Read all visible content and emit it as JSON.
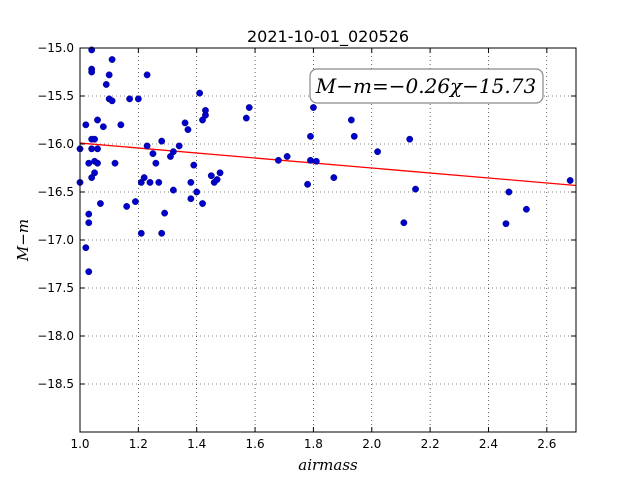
{
  "chart_data": {
    "type": "scatter",
    "title": "2021-10-01_020526",
    "xlabel": "airmass",
    "ylabel": "M−m",
    "xlim": [
      1.0,
      2.7
    ],
    "ylim": [
      -15.0,
      -19.0
    ],
    "y_inverted": true,
    "grid": true,
    "x_ticks": [
      "1.0",
      "1.2",
      "1.4",
      "1.6",
      "1.8",
      "2.0",
      "2.2",
      "2.4",
      "2.6"
    ],
    "y_ticks": [
      "−15.0",
      "−15.5",
      "−16.0",
      "−16.5",
      "−17.0",
      "−17.5",
      "−18.0",
      "−18.5"
    ],
    "annotation": "M−m=−0.26χ−15.73",
    "fit": {
      "slope": -0.26,
      "intercept": -15.73,
      "color": "#ff0000"
    },
    "point_color": "#0000cc",
    "points": [
      [
        1.0,
        -16.05
      ],
      [
        1.0,
        -16.4
      ],
      [
        1.02,
        -15.8
      ],
      [
        1.02,
        -17.08
      ],
      [
        1.03,
        -17.33
      ],
      [
        1.03,
        -16.73
      ],
      [
        1.03,
        -16.82
      ],
      [
        1.03,
        -16.2
      ],
      [
        1.04,
        -16.35
      ],
      [
        1.04,
        -15.95
      ],
      [
        1.04,
        -16.05
      ],
      [
        1.04,
        -15.22
      ],
      [
        1.04,
        -15.25
      ],
      [
        1.04,
        -15.02
      ],
      [
        1.05,
        -16.18
      ],
      [
        1.05,
        -15.95
      ],
      [
        1.05,
        -16.3
      ],
      [
        1.06,
        -15.75
      ],
      [
        1.06,
        -16.05
      ],
      [
        1.06,
        -16.2
      ],
      [
        1.07,
        -16.62
      ],
      [
        1.08,
        -15.82
      ],
      [
        1.09,
        -15.38
      ],
      [
        1.1,
        -15.53
      ],
      [
        1.1,
        -15.28
      ],
      [
        1.11,
        -15.55
      ],
      [
        1.11,
        -15.12
      ],
      [
        1.12,
        -16.2
      ],
      [
        1.14,
        -15.8
      ],
      [
        1.16,
        -16.65
      ],
      [
        1.17,
        -15.53
      ],
      [
        1.19,
        -16.6
      ],
      [
        1.2,
        -15.53
      ],
      [
        1.21,
        -16.4
      ],
      [
        1.21,
        -16.93
      ],
      [
        1.22,
        -16.35
      ],
      [
        1.23,
        -15.28
      ],
      [
        1.23,
        -16.02
      ],
      [
        1.24,
        -16.4
      ],
      [
        1.25,
        -16.1
      ],
      [
        1.26,
        -16.2
      ],
      [
        1.27,
        -16.4
      ],
      [
        1.28,
        -15.97
      ],
      [
        1.28,
        -16.93
      ],
      [
        1.29,
        -16.72
      ],
      [
        1.31,
        -16.13
      ],
      [
        1.32,
        -16.48
      ],
      [
        1.32,
        -16.08
      ],
      [
        1.34,
        -16.02
      ],
      [
        1.36,
        -15.78
      ],
      [
        1.37,
        -15.85
      ],
      [
        1.38,
        -16.4
      ],
      [
        1.38,
        -16.57
      ],
      [
        1.39,
        -16.22
      ],
      [
        1.4,
        -16.5
      ],
      [
        1.41,
        -15.47
      ],
      [
        1.42,
        -16.62
      ],
      [
        1.42,
        -15.75
      ],
      [
        1.43,
        -15.65
      ],
      [
        1.43,
        -15.7
      ],
      [
        1.45,
        -16.33
      ],
      [
        1.46,
        -16.4
      ],
      [
        1.47,
        -16.37
      ],
      [
        1.48,
        -16.3
      ],
      [
        1.57,
        -15.73
      ],
      [
        1.58,
        -15.62
      ],
      [
        1.68,
        -16.17
      ],
      [
        1.71,
        -16.13
      ],
      [
        1.78,
        -16.42
      ],
      [
        1.79,
        -16.17
      ],
      [
        1.79,
        -15.92
      ],
      [
        1.8,
        -15.62
      ],
      [
        1.81,
        -16.18
      ],
      [
        1.87,
        -16.35
      ],
      [
        1.93,
        -15.75
      ],
      [
        1.94,
        -15.92
      ],
      [
        2.02,
        -16.08
      ],
      [
        2.11,
        -16.82
      ],
      [
        2.13,
        -15.95
      ],
      [
        2.15,
        -16.47
      ],
      [
        2.46,
        -16.83
      ],
      [
        2.47,
        -16.5
      ],
      [
        2.53,
        -16.68
      ],
      [
        2.68,
        -16.38
      ]
    ]
  }
}
